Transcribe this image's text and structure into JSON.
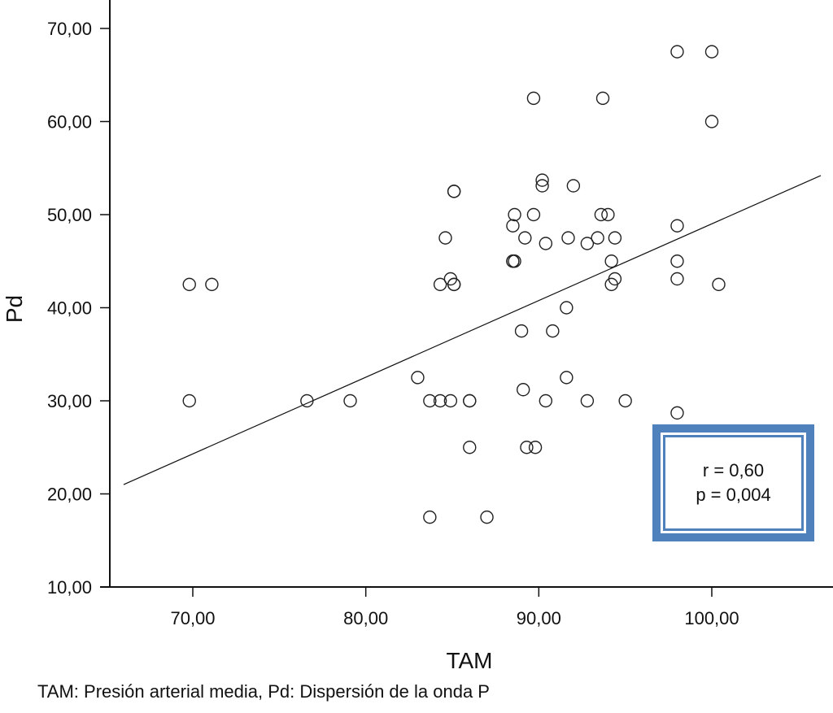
{
  "chart_data": {
    "type": "scatter",
    "title": "",
    "xlabel": "TAM",
    "ylabel": "Pd",
    "xlim": [
      65.4,
      107.2
    ],
    "ylim": [
      10,
      70
    ],
    "x_ticks": [
      70,
      80,
      90,
      100
    ],
    "x_tick_labels": [
      "70,00",
      "80,00",
      "90,00",
      "100,00"
    ],
    "y_ticks": [
      10,
      20,
      30,
      40,
      50,
      60,
      70
    ],
    "y_tick_labels": [
      "10,00",
      "20,00",
      "30,00",
      "40,00",
      "50,00",
      "60,00",
      "70,00"
    ],
    "grid": false,
    "marker": "open-circle",
    "points": [
      {
        "x": 69.8,
        "y": 42.5
      },
      {
        "x": 71.1,
        "y": 42.5
      },
      {
        "x": 69.8,
        "y": 30.0
      },
      {
        "x": 76.6,
        "y": 30.0
      },
      {
        "x": 79.1,
        "y": 30.0
      },
      {
        "x": 83.0,
        "y": 32.5
      },
      {
        "x": 83.7,
        "y": 30.0
      },
      {
        "x": 84.3,
        "y": 30.0
      },
      {
        "x": 84.9,
        "y": 30.0
      },
      {
        "x": 86.0,
        "y": 30.0
      },
      {
        "x": 86.0,
        "y": 30.0
      },
      {
        "x": 86.0,
        "y": 25.0
      },
      {
        "x": 83.7,
        "y": 17.5
      },
      {
        "x": 87.0,
        "y": 17.5
      },
      {
        "x": 84.3,
        "y": 42.5
      },
      {
        "x": 84.9,
        "y": 43.1
      },
      {
        "x": 85.1,
        "y": 42.5
      },
      {
        "x": 85.1,
        "y": 42.5
      },
      {
        "x": 84.6,
        "y": 47.5
      },
      {
        "x": 85.1,
        "y": 52.5
      },
      {
        "x": 85.1,
        "y": 52.5
      },
      {
        "x": 88.5,
        "y": 48.8
      },
      {
        "x": 88.6,
        "y": 50.0
      },
      {
        "x": 89.2,
        "y": 47.5
      },
      {
        "x": 89.7,
        "y": 50.0
      },
      {
        "x": 88.5,
        "y": 45.0
      },
      {
        "x": 88.6,
        "y": 45.0
      },
      {
        "x": 88.5,
        "y": 45.0
      },
      {
        "x": 90.2,
        "y": 53.7
      },
      {
        "x": 90.2,
        "y": 53.1
      },
      {
        "x": 90.4,
        "y": 46.9
      },
      {
        "x": 89.7,
        "y": 62.5
      },
      {
        "x": 93.7,
        "y": 62.5
      },
      {
        "x": 92.0,
        "y": 53.1
      },
      {
        "x": 91.7,
        "y": 47.5
      },
      {
        "x": 92.8,
        "y": 46.9
      },
      {
        "x": 93.4,
        "y": 47.5
      },
      {
        "x": 93.6,
        "y": 50.0
      },
      {
        "x": 94.0,
        "y": 50.0
      },
      {
        "x": 94.4,
        "y": 47.5
      },
      {
        "x": 94.2,
        "y": 45.0
      },
      {
        "x": 94.4,
        "y": 43.1
      },
      {
        "x": 94.2,
        "y": 42.5
      },
      {
        "x": 89.0,
        "y": 37.5
      },
      {
        "x": 90.8,
        "y": 37.5
      },
      {
        "x": 91.6,
        "y": 40.0
      },
      {
        "x": 89.1,
        "y": 31.2
      },
      {
        "x": 91.6,
        "y": 32.5
      },
      {
        "x": 90.4,
        "y": 30.0
      },
      {
        "x": 92.8,
        "y": 30.0
      },
      {
        "x": 95.0,
        "y": 30.0
      },
      {
        "x": 89.3,
        "y": 25.0
      },
      {
        "x": 89.8,
        "y": 25.0
      },
      {
        "x": 98.0,
        "y": 67.5
      },
      {
        "x": 100.0,
        "y": 67.5
      },
      {
        "x": 100.0,
        "y": 60.0
      },
      {
        "x": 98.0,
        "y": 48.8
      },
      {
        "x": 98.0,
        "y": 45.0
      },
      {
        "x": 98.0,
        "y": 43.1
      },
      {
        "x": 100.4,
        "y": 42.5
      },
      {
        "x": 98.0,
        "y": 28.7
      }
    ],
    "fit_line": {
      "x": [
        66.0,
        106.3
      ],
      "y": [
        21.0,
        54.2
      ]
    },
    "annotations": [
      {
        "text": "r = 0,60",
        "position": "bottom-right"
      },
      {
        "text": "p = 0,004",
        "position": "bottom-right"
      }
    ],
    "legend": null,
    "caption": "TAM: Presión arterial media, Pd: Dispersión de la onda P"
  },
  "stats": {
    "r_label": "r = 0,60",
    "p_label": "p = 0,004",
    "box_color": "#4f81bd"
  },
  "caption": "TAM: Presión arterial media, Pd: Dispersión de la onda P"
}
